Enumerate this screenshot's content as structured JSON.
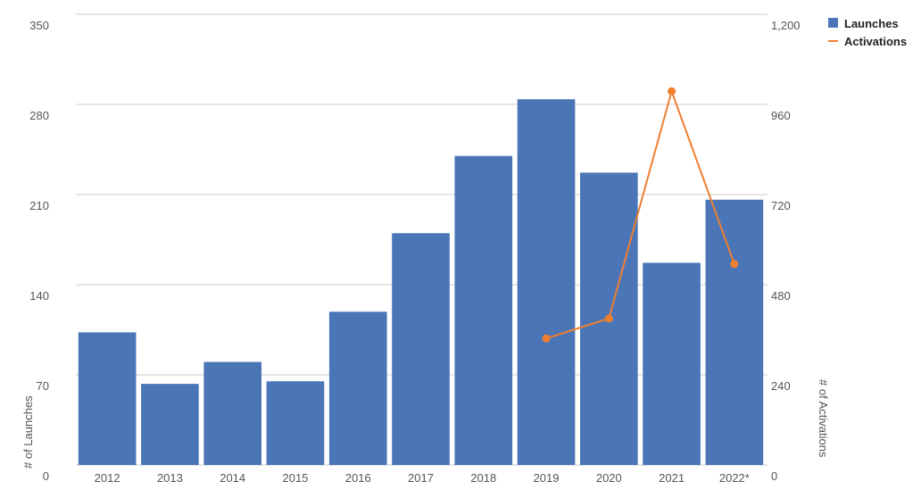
{
  "chart_data": {
    "type": "bar",
    "categories": [
      "2012",
      "2013",
      "2014",
      "2015",
      "2016",
      "2017",
      "2018",
      "2019",
      "2020",
      "2021",
      "2022*"
    ],
    "series": [
      {
        "name": "Launches",
        "type": "bar",
        "color": "#4a76b8",
        "values": [
          103,
          63,
          80,
          65,
          119,
          180,
          240,
          284,
          227,
          157,
          206
        ]
      },
      {
        "name": "Activations",
        "type": "line",
        "axis": "y2",
        "color": "#f07f2e",
        "values": [
          null,
          null,
          null,
          null,
          null,
          null,
          null,
          337,
          390,
          995,
          535
        ]
      }
    ],
    "ylabel": "# of Launches",
    "y2label": "# of Activations",
    "ylim": [
      0,
      350
    ],
    "yticks": [
      0,
      70,
      140,
      210,
      280,
      350
    ],
    "y2lim": [
      0,
      1200
    ],
    "y2ticks": [
      0,
      240,
      480,
      720,
      960,
      {
        "value": 1200,
        "label": "1,200"
      }
    ],
    "grid": true,
    "legend": "top-right"
  }
}
